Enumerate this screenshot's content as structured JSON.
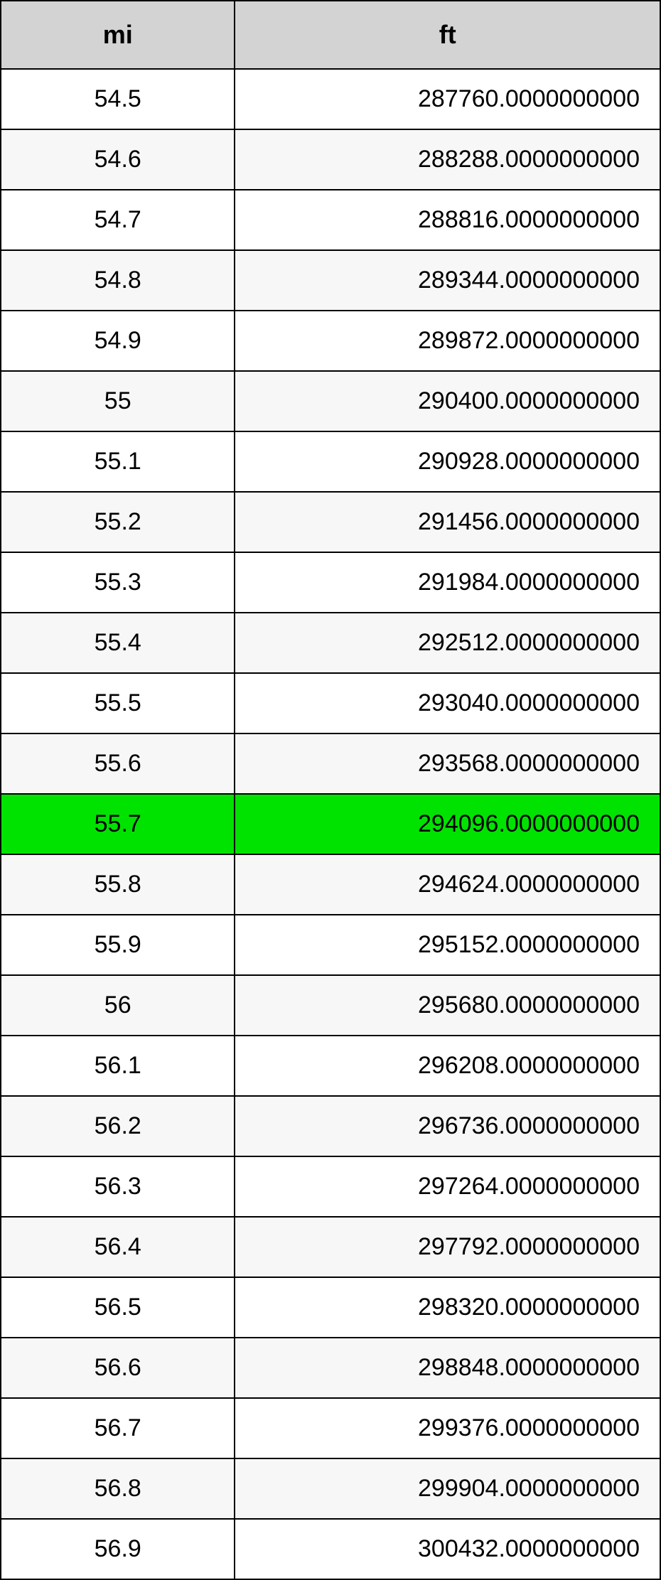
{
  "conversion_table": {
    "type": "table",
    "columns": [
      {
        "label": "mi",
        "width_pct": 35.5,
        "align": "center"
      },
      {
        "label": "ft",
        "width_pct": 64.5,
        "align": "right"
      }
    ],
    "header_bg_color": "#d3d3d3",
    "header_fontsize": 36,
    "header_fontweight": "bold",
    "cell_fontsize": 34,
    "border_color": "#000000",
    "row_alt_bg": "#f7f7f7",
    "row_bg": "#ffffff",
    "highlight_bg": "#00e300",
    "highlighted_row_index": 12,
    "rows": [
      {
        "mi": "54.5",
        "ft": "287760.0000000000"
      },
      {
        "mi": "54.6",
        "ft": "288288.0000000000"
      },
      {
        "mi": "54.7",
        "ft": "288816.0000000000"
      },
      {
        "mi": "54.8",
        "ft": "289344.0000000000"
      },
      {
        "mi": "54.9",
        "ft": "289872.0000000000"
      },
      {
        "mi": "55",
        "ft": "290400.0000000000"
      },
      {
        "mi": "55.1",
        "ft": "290928.0000000000"
      },
      {
        "mi": "55.2",
        "ft": "291456.0000000000"
      },
      {
        "mi": "55.3",
        "ft": "291984.0000000000"
      },
      {
        "mi": "55.4",
        "ft": "292512.0000000000"
      },
      {
        "mi": "55.5",
        "ft": "293040.0000000000"
      },
      {
        "mi": "55.6",
        "ft": "293568.0000000000"
      },
      {
        "mi": "55.7",
        "ft": "294096.0000000000"
      },
      {
        "mi": "55.8",
        "ft": "294624.0000000000"
      },
      {
        "mi": "55.9",
        "ft": "295152.0000000000"
      },
      {
        "mi": "56",
        "ft": "295680.0000000000"
      },
      {
        "mi": "56.1",
        "ft": "296208.0000000000"
      },
      {
        "mi": "56.2",
        "ft": "296736.0000000000"
      },
      {
        "mi": "56.3",
        "ft": "297264.0000000000"
      },
      {
        "mi": "56.4",
        "ft": "297792.0000000000"
      },
      {
        "mi": "56.5",
        "ft": "298320.0000000000"
      },
      {
        "mi": "56.6",
        "ft": "298848.0000000000"
      },
      {
        "mi": "56.7",
        "ft": "299376.0000000000"
      },
      {
        "mi": "56.8",
        "ft": "299904.0000000000"
      },
      {
        "mi": "56.9",
        "ft": "300432.0000000000"
      }
    ]
  }
}
